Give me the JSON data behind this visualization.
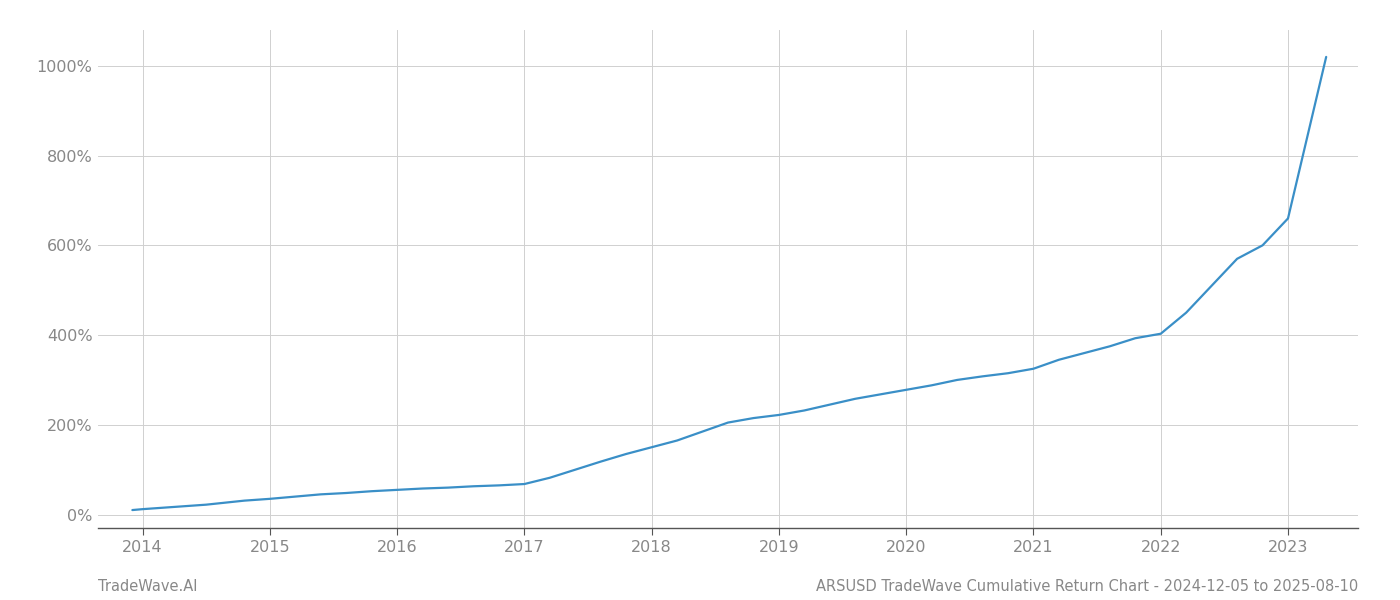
{
  "title": "ARSUSD TradeWave Cumulative Return Chart - 2024-12-05 to 2025-08-10",
  "watermark": "TradeWave.AI",
  "line_color": "#3a8fc7",
  "background_color": "#ffffff",
  "grid_color": "#d0d0d0",
  "x_ticks": [
    2014,
    2015,
    2016,
    2017,
    2018,
    2019,
    2020,
    2021,
    2022,
    2023
  ],
  "y_ticks": [
    0,
    200,
    400,
    600,
    800,
    1000
  ],
  "xlim": [
    2013.65,
    2023.55
  ],
  "ylim": [
    -30,
    1080
  ],
  "data_x": [
    2013.92,
    2014.0,
    2014.1,
    2014.2,
    2014.3,
    2014.4,
    2014.5,
    2014.6,
    2014.7,
    2014.8,
    2014.9,
    2015.0,
    2015.2,
    2015.4,
    2015.6,
    2015.8,
    2016.0,
    2016.2,
    2016.4,
    2016.6,
    2016.8,
    2017.0,
    2017.2,
    2017.4,
    2017.6,
    2017.8,
    2018.0,
    2018.2,
    2018.4,
    2018.6,
    2018.8,
    2019.0,
    2019.2,
    2019.4,
    2019.6,
    2019.8,
    2020.0,
    2020.2,
    2020.4,
    2020.6,
    2020.8,
    2021.0,
    2021.2,
    2021.4,
    2021.6,
    2021.8,
    2022.0,
    2022.2,
    2022.4,
    2022.6,
    2022.8,
    2023.0,
    2023.15,
    2023.3
  ],
  "data_y": [
    10,
    12,
    14,
    16,
    18,
    20,
    22,
    25,
    28,
    31,
    33,
    35,
    40,
    45,
    48,
    52,
    55,
    58,
    60,
    63,
    65,
    68,
    82,
    100,
    118,
    135,
    150,
    165,
    185,
    205,
    215,
    222,
    232,
    245,
    258,
    268,
    278,
    288,
    300,
    308,
    315,
    325,
    345,
    360,
    375,
    393,
    403,
    450,
    510,
    570,
    600,
    660,
    840,
    1020
  ],
  "line_width": 1.6,
  "title_fontsize": 10.5,
  "watermark_fontsize": 10.5,
  "tick_fontsize": 11.5
}
